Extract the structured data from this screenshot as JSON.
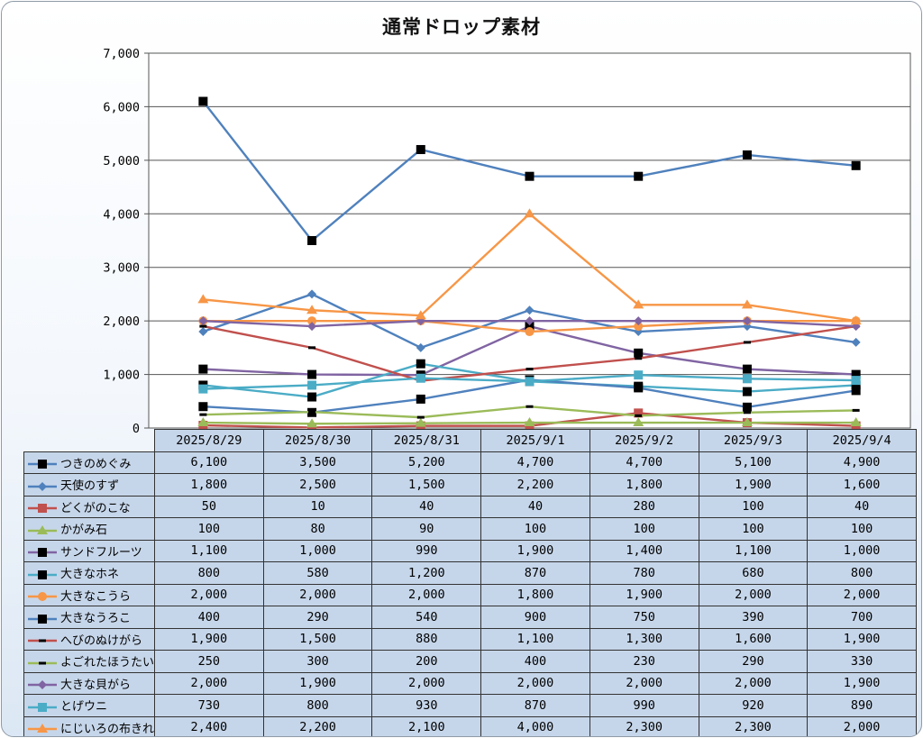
{
  "chart_data": {
    "type": "line",
    "title": "通常ドロップ素材",
    "ylim": [
      0,
      7000
    ],
    "y_ticks": [
      "0",
      "1,000",
      "2,000",
      "3,000",
      "4,000",
      "5,000",
      "6,000",
      "7,000"
    ],
    "grid": true,
    "legend": "data-table",
    "categories": [
      "2025/8/29",
      "2025/8/30",
      "2025/8/31",
      "2025/9/1",
      "2025/9/2",
      "2025/9/3",
      "2025/9/4"
    ],
    "series": [
      {
        "name": "つきのめぐみ",
        "color": "#4f81bd",
        "marker": "square-black",
        "values": [
          6100,
          3500,
          5200,
          4700,
          4700,
          5100,
          4900
        ],
        "labels": [
          "6,100",
          "3,500",
          "5,200",
          "4,700",
          "4,700",
          "5,100",
          "4,900"
        ]
      },
      {
        "name": "天使のすず",
        "color": "#4f81bd",
        "marker": "diamond",
        "values": [
          1800,
          2500,
          1500,
          2200,
          1800,
          1900,
          1600
        ],
        "labels": [
          "1,800",
          "2,500",
          "1,500",
          "2,200",
          "1,800",
          "1,900",
          "1,600"
        ]
      },
      {
        "name": "どくがのこな",
        "color": "#c0504d",
        "marker": "square",
        "values": [
          50,
          10,
          40,
          40,
          280,
          100,
          40
        ],
        "labels": [
          "50",
          "10",
          "40",
          "40",
          "280",
          "100",
          "40"
        ]
      },
      {
        "name": "かがみ石",
        "color": "#9bbb59",
        "marker": "triangle",
        "values": [
          100,
          80,
          90,
          100,
          100,
          100,
          100
        ],
        "labels": [
          "100",
          "80",
          "90",
          "100",
          "100",
          "100",
          "100"
        ]
      },
      {
        "name": "サンドフルーツ",
        "color": "#8064a2",
        "marker": "square-black",
        "values": [
          1100,
          1000,
          990,
          1900,
          1400,
          1100,
          1000
        ],
        "labels": [
          "1,100",
          "1,000",
          "990",
          "1,900",
          "1,400",
          "1,100",
          "1,000"
        ]
      },
      {
        "name": "大きなホネ",
        "color": "#4bacc6",
        "marker": "square-black",
        "values": [
          800,
          580,
          1200,
          870,
          780,
          680,
          800
        ],
        "labels": [
          "800",
          "580",
          "1,200",
          "870",
          "780",
          "680",
          "800"
        ]
      },
      {
        "name": "大きなこうら",
        "color": "#f79646",
        "marker": "circle",
        "values": [
          2000,
          2000,
          2000,
          1800,
          1900,
          2000,
          2000
        ],
        "labels": [
          "2,000",
          "2,000",
          "2,000",
          "1,800",
          "1,900",
          "2,000",
          "2,000"
        ]
      },
      {
        "name": "大きなうろこ",
        "color": "#4f81bd",
        "marker": "square-black",
        "values": [
          400,
          290,
          540,
          900,
          750,
          390,
          700
        ],
        "labels": [
          "400",
          "290",
          "540",
          "900",
          "750",
          "390",
          "700"
        ]
      },
      {
        "name": "へびのぬけがら",
        "color": "#c0504d",
        "marker": "dash",
        "values": [
          1900,
          1500,
          880,
          1100,
          1300,
          1600,
          1900
        ],
        "labels": [
          "1,900",
          "1,500",
          "880",
          "1,100",
          "1,300",
          "1,600",
          "1,900"
        ]
      },
      {
        "name": "よごれたほうたい",
        "color": "#9bbb59",
        "marker": "dash",
        "values": [
          250,
          300,
          200,
          400,
          230,
          290,
          330
        ],
        "labels": [
          "250",
          "300",
          "200",
          "400",
          "230",
          "290",
          "330"
        ]
      },
      {
        "name": "大きな貝がら",
        "color": "#8064a2",
        "marker": "diamond",
        "values": [
          2000,
          1900,
          2000,
          2000,
          2000,
          2000,
          1900
        ],
        "labels": [
          "2,000",
          "1,900",
          "2,000",
          "2,000",
          "2,000",
          "2,000",
          "1,900"
        ]
      },
      {
        "name": "とげウニ",
        "color": "#4bacc6",
        "marker": "square",
        "values": [
          730,
          800,
          930,
          870,
          990,
          920,
          890
        ],
        "labels": [
          "730",
          "800",
          "930",
          "870",
          "990",
          "920",
          "890"
        ]
      },
      {
        "name": "にじいろの布きれ",
        "color": "#f79646",
        "marker": "triangle",
        "values": [
          2400,
          2200,
          2100,
          4000,
          2300,
          2300,
          2000
        ],
        "labels": [
          "2,400",
          "2,200",
          "2,100",
          "4,000",
          "2,300",
          "2,300",
          "2,000"
        ]
      }
    ]
  }
}
